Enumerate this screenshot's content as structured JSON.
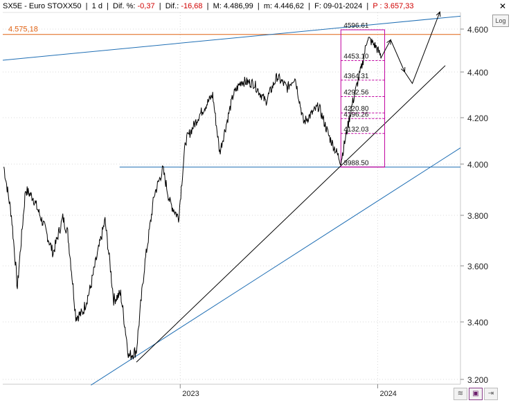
{
  "header": {
    "symbol": "SX5E - Euro STOXX50",
    "period": "1 d",
    "diff_pct_label": "Dif. %:",
    "diff_pct": "-0,37",
    "diff_label": "Dif.:",
    "diff": "-16,68",
    "max_label": "M:",
    "max": "4.486,99",
    "min_label": "m:",
    "min": "4.446,62",
    "date_label": "F:",
    "date": "09-01-2024",
    "price_label": "P :",
    "price": "3.657,33"
  },
  "controls": {
    "close": "✕",
    "log": "Log",
    "toolbar": [
      "≋",
      "▣",
      "⇥"
    ]
  },
  "colors": {
    "negative": "#d00000",
    "price_line": "#e06010",
    "fib": "#c000a0",
    "channel": "#1e6eb4",
    "trend": "#000000"
  },
  "chart_data": {
    "type": "line",
    "title": "",
    "xlabel": "",
    "ylabel": "",
    "ylim": [
      3150,
      4680
    ],
    "yticks": [
      {
        "value": 3200,
        "label": "3.200"
      },
      {
        "value": 3400,
        "label": "3.400"
      },
      {
        "value": 3600,
        "label": "3.600"
      },
      {
        "value": 3800,
        "label": "3.800"
      },
      {
        "value": 4000,
        "label": "4.000"
      },
      {
        "value": 4200,
        "label": "4.200"
      },
      {
        "value": 4400,
        "label": "4.400"
      },
      {
        "value": 4600,
        "label": "4.600"
      }
    ],
    "xticks": [
      {
        "value": "2023-01-02",
        "label": "2023"
      },
      {
        "value": "2024-01-02",
        "label": "2024"
      }
    ],
    "xrange": [
      "2022-02-08",
      "2024-06-03"
    ],
    "grid": true,
    "series": [
      {
        "values": [
          [
            "2022-02-10",
            3990
          ],
          [
            "2022-02-24",
            3800
          ],
          [
            "2022-03-07",
            3520
          ],
          [
            "2022-03-22",
            3900
          ],
          [
            "2022-04-05",
            3870
          ],
          [
            "2022-04-25",
            3760
          ],
          [
            "2022-05-12",
            3650
          ],
          [
            "2022-05-30",
            3790
          ],
          [
            "2022-06-08",
            3730
          ],
          [
            "2022-06-23",
            3420
          ],
          [
            "2022-07-05",
            3430
          ],
          [
            "2022-07-20",
            3520
          ],
          [
            "2022-08-16",
            3780
          ],
          [
            "2022-09-01",
            3480
          ],
          [
            "2022-09-14",
            3500
          ],
          [
            "2022-09-29",
            3280
          ],
          [
            "2022-10-13",
            3300
          ],
          [
            "2022-10-28",
            3600
          ],
          [
            "2022-11-15",
            3880
          ],
          [
            "2022-12-01",
            3980
          ],
          [
            "2022-12-14",
            3850
          ],
          [
            "2022-12-30",
            3790
          ],
          [
            "2023-01-12",
            4100
          ],
          [
            "2023-02-06",
            4210
          ],
          [
            "2023-03-03",
            4300
          ],
          [
            "2023-03-16",
            4050
          ],
          [
            "2023-04-10",
            4300
          ],
          [
            "2023-04-25",
            4360
          ],
          [
            "2023-05-18",
            4350
          ],
          [
            "2023-06-09",
            4270
          ],
          [
            "2023-06-30",
            4380
          ],
          [
            "2023-07-19",
            4330
          ],
          [
            "2023-08-02",
            4380
          ],
          [
            "2023-08-18",
            4180
          ],
          [
            "2023-09-15",
            4250
          ],
          [
            "2023-10-04",
            4120
          ],
          [
            "2023-10-26",
            4010
          ],
          [
            "2023-11-16",
            4260
          ],
          [
            "2023-12-05",
            4440
          ],
          [
            "2023-12-14",
            4560
          ],
          [
            "2023-12-29",
            4521
          ],
          [
            "2024-01-09",
            4470
          ]
        ]
      }
    ],
    "price_line": {
      "value": 4575.18,
      "label": "4.575,18"
    },
    "fibonacci": {
      "start": "2023-10-26",
      "end": "2023-12-28",
      "levels": [
        {
          "value": 4596.61,
          "label": "4596.61"
        },
        {
          "value": 4453.1,
          "label": "4453.10"
        },
        {
          "value": 4364.31,
          "label": "4364.31"
        },
        {
          "value": 4292.56,
          "label": "4292.56"
        },
        {
          "value": 4220.8,
          "label": "4220.80"
        },
        {
          "value": 4196.26,
          "label": "4196.26"
        },
        {
          "value": 4132.03,
          "label": "4132.03"
        },
        {
          "value": 3988.5,
          "label": "3988.50"
        }
      ]
    },
    "horizontal_support": {
      "value": 3988.5,
      "from": "2022-09-12",
      "to": "2024-06-03"
    },
    "trendlines": [
      {
        "from": [
          "2022-02-08",
          4455
        ],
        "to": [
          "2024-06-03",
          4660
        ]
      },
      {
        "from": [
          "2022-07-21",
          3180
        ],
        "to": [
          "2024-06-03",
          4070
        ]
      },
      {
        "from": [
          "2022-10-13",
          3260
        ],
        "to": [
          "2024-05-06",
          4430
        ]
      }
    ],
    "projection": [
      [
        "2024-01-09",
        4470
      ],
      [
        "2024-01-26",
        4550
      ],
      [
        "2024-02-21",
        4400
      ],
      [
        "2024-03-06",
        4350
      ],
      [
        "2024-04-26",
        4680
      ]
    ]
  }
}
